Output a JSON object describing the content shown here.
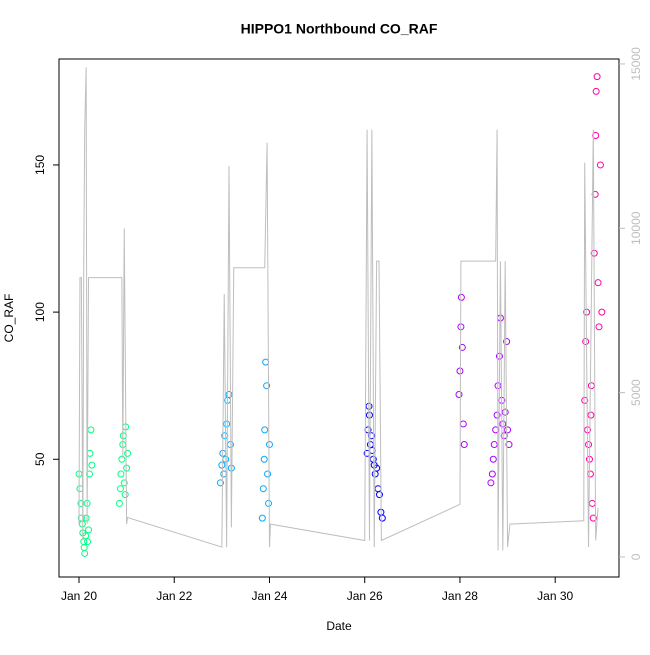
{
  "chart_data": {
    "type": "scatter",
    "title": "HIPPO1 Northbound CO_RAF",
    "x_label": "Date",
    "y_label": "CO_RAF",
    "xlim": [
      19.58,
      31.34
    ],
    "xticks": [
      {
        "value": 20,
        "label": "Jan 20"
      },
      {
        "value": 22,
        "label": "Jan 22"
      },
      {
        "value": 24,
        "label": "Jan 24"
      },
      {
        "value": 26,
        "label": "Jan 26"
      },
      {
        "value": 28,
        "label": "Jan 28"
      },
      {
        "value": 30,
        "label": "Jan 30"
      }
    ],
    "ylim": [
      10,
      186
    ],
    "yticks": [
      50,
      100,
      150
    ],
    "y2lim": [
      -610,
      15150
    ],
    "y2ticks": [
      0,
      5000,
      10000,
      15000
    ],
    "series": [
      {
        "color": "#00ff80",
        "x": [
          20.0,
          20.02,
          20.04,
          20.05,
          20.07,
          20.08,
          20.1,
          20.11,
          20.12,
          20.14,
          20.15,
          20.17,
          20.18,
          20.2,
          20.22,
          20.23,
          20.25,
          20.27,
          20.85,
          20.87,
          20.88,
          20.9,
          20.92,
          20.93,
          20.95,
          20.97,
          20.98,
          21.0,
          21.02
        ],
        "values": [
          45,
          40,
          35,
          30,
          28,
          25,
          22,
          20,
          18,
          24,
          30,
          35,
          22,
          26,
          45,
          52,
          60,
          48,
          35,
          40,
          45,
          50,
          55,
          58,
          42,
          38,
          61,
          47,
          52
        ]
      },
      {
        "color": "#00aaff",
        "x": [
          22.97,
          23.0,
          23.02,
          23.04,
          23.06,
          23.08,
          23.1,
          23.12,
          23.15,
          23.18,
          23.2,
          23.85,
          23.87,
          23.89,
          23.9,
          23.92,
          23.94,
          23.96,
          23.98,
          24.0
        ],
        "values": [
          42,
          48,
          52,
          45,
          58,
          50,
          62,
          70,
          72,
          55,
          47,
          30,
          40,
          50,
          60,
          83,
          75,
          45,
          35,
          55
        ]
      },
      {
        "color": "#0000ff",
        "x": [
          26.05,
          26.07,
          26.09,
          26.1,
          26.12,
          26.14,
          26.16,
          26.18,
          26.2,
          26.22,
          26.25,
          26.28,
          26.31,
          26.34,
          26.37
        ],
        "values": [
          52,
          60,
          68,
          65,
          55,
          58,
          53,
          50,
          48,
          45,
          47,
          40,
          38,
          32,
          30
        ]
      },
      {
        "color": "#aa00ff",
        "x": [
          27.98,
          28.0,
          28.02,
          28.03,
          28.05,
          28.07,
          28.09,
          28.65,
          28.68,
          28.7,
          28.72,
          28.75,
          28.78,
          28.8,
          28.83,
          28.85,
          28.88,
          28.9,
          28.93,
          28.95,
          28.98,
          29.0,
          29.03
        ],
        "values": [
          72,
          80,
          95,
          105,
          88,
          62,
          55,
          42,
          45,
          50,
          55,
          60,
          65,
          75,
          85,
          98,
          70,
          62,
          58,
          66,
          90,
          60,
          55
        ]
      },
      {
        "color": "#ff00aa",
        "x": [
          30.62,
          30.64,
          30.66,
          30.68,
          30.7,
          30.72,
          30.74,
          30.75,
          30.76,
          30.78,
          30.8,
          30.82,
          30.84,
          30.85,
          30.86,
          30.88,
          30.9,
          30.92,
          30.95,
          30.98
        ],
        "values": [
          70,
          90,
          100,
          60,
          55,
          50,
          45,
          65,
          75,
          35,
          30,
          120,
          140,
          160,
          175,
          180,
          110,
          95,
          150,
          100
        ]
      },
      {
        "color": "#bebebe",
        "axis": "y2",
        "line": true,
        "x": [
          20.0,
          20.02,
          20.05,
          20.08,
          20.1,
          20.12,
          20.15,
          20.17,
          20.2,
          20.25,
          20.9,
          20.92,
          20.95,
          21.0,
          21.02,
          23.0,
          23.05,
          23.1,
          23.15,
          23.2,
          23.25,
          23.9,
          23.95,
          24.0,
          24.02,
          26.0,
          26.05,
          26.1,
          26.15,
          26.2,
          26.25,
          26.3,
          26.35,
          28.0,
          28.02,
          28.75,
          28.78,
          28.8,
          28.85,
          28.9,
          28.95,
          29.0,
          29.05,
          30.6,
          30.62,
          30.7,
          30.8,
          30.85,
          30.9
        ],
        "values": [
          1000,
          8500,
          8500,
          500,
          9000,
          13000,
          14900,
          1000,
          8500,
          8500,
          8500,
          3000,
          10000,
          1000,
          1200,
          300,
          8000,
          300,
          11900,
          900,
          8800,
          8800,
          12600,
          300,
          1000,
          500,
          13000,
          500,
          13000,
          300,
          9000,
          9000,
          500,
          1600,
          9000,
          9000,
          13000,
          200,
          9000,
          200,
          9000,
          300,
          1000,
          1100,
          12000,
          300,
          13000,
          500,
          1500
        ]
      }
    ]
  }
}
